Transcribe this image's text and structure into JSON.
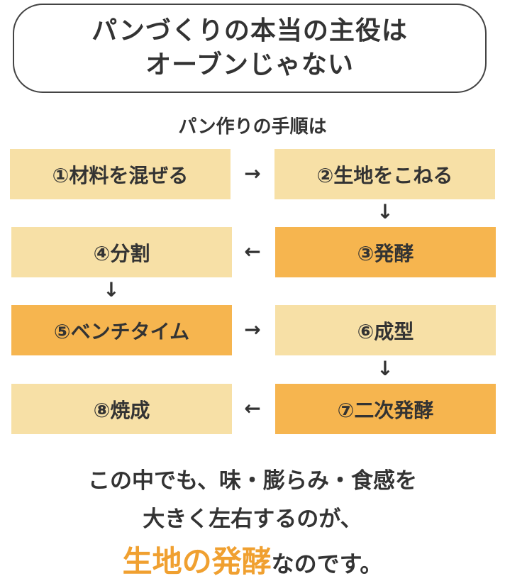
{
  "title": {
    "line1": "パンづくりの本当の主役は",
    "line2": "オーブンじゃない"
  },
  "subtitle": "パン作りの手順は",
  "steps": [
    {
      "label": "①材料を混ぜる",
      "highlight": false
    },
    {
      "label": "②生地をこねる",
      "highlight": false
    },
    {
      "label": "③発酵",
      "highlight": true
    },
    {
      "label": "④分割",
      "highlight": false
    },
    {
      "label": "⑤ベンチタイム",
      "highlight": true
    },
    {
      "label": "⑥成型",
      "highlight": false
    },
    {
      "label": "⑦二次発酵",
      "highlight": true
    },
    {
      "label": "⑧焼成",
      "highlight": false
    }
  ],
  "arrows": {
    "right": "→",
    "left": "←",
    "down": "↓"
  },
  "conclusion": {
    "line1": "この中でも、味・膨らみ・食感を",
    "line2": "大きく左右するのが、",
    "highlight": "生地の発酵",
    "line3_rest": "なのです。"
  },
  "colors": {
    "light_box": "#f7e0a6",
    "highlight_box": "#f6b54f",
    "highlight_text": "#f0a030",
    "text": "#333333"
  }
}
